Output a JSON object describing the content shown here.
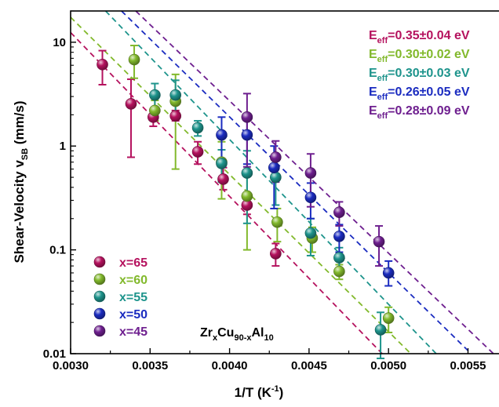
{
  "chart_data": {
    "type": "scatter",
    "xlabel_main": "1/T (K",
    "xlabel_sup": "-1",
    "xlabel_end": ")",
    "ylabel_main": "Shear-Velocity v",
    "ylabel_sub": "SB",
    "ylabel_end": " (mm/s)",
    "xlim": [
      0.003,
      0.0057
    ],
    "ylim": [
      0.01,
      20
    ],
    "yscale": "log",
    "x_ticks": [
      {
        "v": 0.003,
        "label": "0.0030"
      },
      {
        "v": 0.0035,
        "label": "0.0035"
      },
      {
        "v": 0.004,
        "label": "0.0040"
      },
      {
        "v": 0.0045,
        "label": "0.0045"
      },
      {
        "v": 0.005,
        "label": "0.0050"
      },
      {
        "v": 0.0055,
        "label": "0.0055"
      }
    ],
    "y_ticks": [
      {
        "v": 0.01,
        "label": "0.01"
      },
      {
        "v": 0.1,
        "label": "0.1"
      },
      {
        "v": 1,
        "label": "1"
      },
      {
        "v": 10,
        "label": "10"
      }
    ],
    "composition": {
      "a": "Zr",
      "a_sub": "x",
      "b": "Cu",
      "b_sub": "90-x",
      "c": "Al",
      "c_sub": "10"
    },
    "series": [
      {
        "name": "x=65",
        "color": "#b5125e",
        "eeff": {
          "pre": "E",
          "sub": "eff",
          "post": "=0.35±0.04 eV"
        },
        "points": [
          {
            "x": 0.0032,
            "y": 6.1,
            "lo": 3.9,
            "hi": 8.3
          },
          {
            "x": 0.00338,
            "y": 2.55,
            "lo": 0.78,
            "hi": 4.4
          },
          {
            "x": 0.00352,
            "y": 1.9,
            "lo": 1.55,
            "hi": 2.25
          },
          {
            "x": 0.00366,
            "y": 1.95,
            "lo": 1.75,
            "hi": 2.2
          },
          {
            "x": 0.0038,
            "y": 0.88,
            "lo": 0.67,
            "hi": 1.1
          },
          {
            "x": 0.00396,
            "y": 0.48,
            "lo": 0.38,
            "hi": 0.62
          },
          {
            "x": 0.00411,
            "y": 0.27,
            "lo": 0.22,
            "hi": 0.32
          },
          {
            "x": 0.00429,
            "y": 0.092,
            "lo": 0.07,
            "hi": 0.115
          }
        ],
        "fit": {
          "x1": 0.003,
          "y1": 12.4,
          "x2": 0.00496,
          "y2": 0.01
        }
      },
      {
        "name": "x=60",
        "color": "#82b92c",
        "eeff": {
          "pre": "E",
          "sub": "eff",
          "post": "=0.30±0.02 eV"
        },
        "points": [
          {
            "x": 0.0034,
            "y": 6.8,
            "lo": 4.5,
            "hi": 9.3
          },
          {
            "x": 0.00353,
            "y": 2.2,
            "lo": 1.75,
            "hi": 2.75
          },
          {
            "x": 0.00366,
            "y": 2.7,
            "lo": 0.6,
            "hi": 4.9
          },
          {
            "x": 0.00395,
            "y": 0.7,
            "lo": 0.31,
            "hi": 1.1
          },
          {
            "x": 0.00411,
            "y": 0.33,
            "lo": 0.1,
            "hi": 0.55
          },
          {
            "x": 0.0043,
            "y": 0.185,
            "lo": 0.12,
            "hi": 0.25
          },
          {
            "x": 0.00452,
            "y": 0.13,
            "lo": 0.095,
            "hi": 0.165
          },
          {
            "x": 0.00469,
            "y": 0.062,
            "lo": 0.052,
            "hi": 0.072
          },
          {
            "x": 0.005,
            "y": 0.022,
            "lo": 0.016,
            "hi": 0.028
          }
        ],
        "fit": {
          "x1": 0.003,
          "y1": 17.4,
          "x2": 0.00514,
          "y2": 0.01
        }
      },
      {
        "name": "x=55",
        "color": "#1e948c",
        "eeff": {
          "pre": "E",
          "sub": "eff",
          "post": "=0.30±0.03 eV"
        },
        "points": [
          {
            "x": 0.00353,
            "y": 3.1,
            "lo": 2.2,
            "hi": 4.0
          },
          {
            "x": 0.00366,
            "y": 3.1,
            "lo": 2.0,
            "hi": 4.3
          },
          {
            "x": 0.0038,
            "y": 1.5,
            "lo": 1.25,
            "hi": 1.75
          },
          {
            "x": 0.00395,
            "y": 0.68,
            "lo": 0.45,
            "hi": 0.92
          },
          {
            "x": 0.00411,
            "y": 0.55,
            "lo": 0.18,
            "hi": 0.9
          },
          {
            "x": 0.00429,
            "y": 0.5,
            "lo": 0.27,
            "hi": 0.72
          },
          {
            "x": 0.00451,
            "y": 0.145,
            "lo": 0.088,
            "hi": 0.2
          },
          {
            "x": 0.00469,
            "y": 0.084,
            "lo": 0.062,
            "hi": 0.105
          },
          {
            "x": 0.00495,
            "y": 0.017,
            "lo": 0.009,
            "hi": 0.025
          }
        ],
        "fit": {
          "x1": 0.00322,
          "y1": 20,
          "x2": 0.0053,
          "y2": 0.01
        }
      },
      {
        "name": "x=50",
        "color": "#1b2cc0",
        "eeff": {
          "pre": "E",
          "sub": "eff",
          "post": "=0.26±0.05 eV"
        },
        "points": [
          {
            "x": 0.00395,
            "y": 1.28,
            "lo": 0.67,
            "hi": 1.9
          },
          {
            "x": 0.00411,
            "y": 1.28,
            "lo": 0.67,
            "hi": 1.9
          },
          {
            "x": 0.00428,
            "y": 0.62,
            "lo": 0.25,
            "hi": 1.0
          },
          {
            "x": 0.00451,
            "y": 0.32,
            "lo": 0.2,
            "hi": 0.44
          },
          {
            "x": 0.00469,
            "y": 0.135,
            "lo": 0.095,
            "hi": 0.175
          },
          {
            "x": 0.005,
            "y": 0.06,
            "lo": 0.045,
            "hi": 0.078
          }
        ],
        "fit": {
          "x1": 0.00332,
          "y1": 20,
          "x2": 0.00552,
          "y2": 0.01
        }
      },
      {
        "name": "x=45",
        "color": "#6e1f8f",
        "eeff": {
          "pre": "E",
          "sub": "eff",
          "post": "=0.28±0.09 eV"
        },
        "points": [
          {
            "x": 0.00411,
            "y": 1.9,
            "lo": 0.63,
            "hi": 3.2
          },
          {
            "x": 0.00429,
            "y": 0.78,
            "lo": 0.45,
            "hi": 1.12
          },
          {
            "x": 0.00451,
            "y": 0.55,
            "lo": 0.26,
            "hi": 0.84
          },
          {
            "x": 0.00469,
            "y": 0.23,
            "lo": 0.17,
            "hi": 0.29
          },
          {
            "x": 0.00494,
            "y": 0.12,
            "lo": 0.07,
            "hi": 0.17
          }
        ],
        "fit": {
          "x1": 0.00341,
          "y1": 20,
          "x2": 0.00566,
          "y2": 0.01
        }
      }
    ]
  }
}
